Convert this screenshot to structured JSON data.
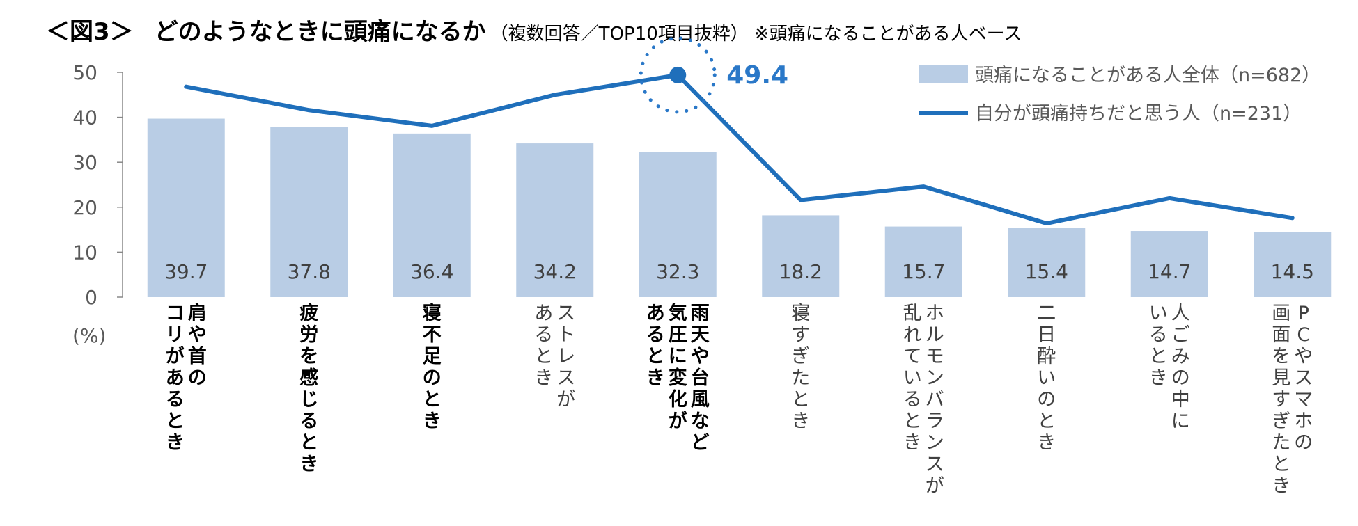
{
  "title": {
    "figure": "＜図3＞",
    "main": "どのようなときに頭痛になるか",
    "subtitle": "（複数回答／TOP10項目抜粋）",
    "note": "※頭痛になることがある人ベース"
  },
  "colors": {
    "bar": "#b9cde5",
    "line": "#1f6fbb",
    "peak": "#2a78c8"
  },
  "chart_data": {
    "type": "bar",
    "ylabel": "(%)",
    "ylim": [
      0,
      50
    ],
    "yticks": [
      0,
      10,
      20,
      30,
      40,
      50
    ],
    "categories": [
      {
        "lines": [
          "肩や首の",
          "コリがあるとき"
        ],
        "bold": true
      },
      {
        "lines": [
          "疲労を感じるとき"
        ],
        "bold": true
      },
      {
        "lines": [
          "寝不足のとき"
        ],
        "bold": true
      },
      {
        "lines": [
          "ストレスが",
          "あるとき"
        ],
        "bold": false
      },
      {
        "lines": [
          "雨天や台風など",
          "気圧に変化が",
          "あるとき"
        ],
        "bold": true
      },
      {
        "lines": [
          "寝すぎたとき"
        ],
        "bold": false
      },
      {
        "lines": [
          "ホルモンバランスが",
          "乱れているとき"
        ],
        "bold": false
      },
      {
        "lines": [
          "二日酔いのとき"
        ],
        "bold": false
      },
      {
        "lines": [
          "人ごみの中に",
          "いるとき"
        ],
        "bold": false
      },
      {
        "lines": [
          "PCやスマホの",
          "画面を見すぎたとき"
        ],
        "bold": false
      }
    ],
    "series": [
      {
        "name": "頭痛になることがある人全体（n=682）",
        "kind": "bar",
        "values": [
          39.7,
          37.8,
          36.4,
          34.2,
          32.3,
          18.2,
          15.7,
          15.4,
          14.7,
          14.5
        ],
        "labels": [
          "39.7",
          "37.8",
          "36.4",
          "34.2",
          "32.3",
          "18.2",
          "15.7",
          "15.4",
          "14.7",
          "14.5"
        ]
      },
      {
        "name": "自分が頭痛持ちだと思う人（n=231）",
        "kind": "line",
        "values": [
          46.8,
          41.6,
          38.1,
          45.0,
          49.4,
          21.6,
          24.6,
          16.4,
          22.0,
          17.6
        ]
      }
    ],
    "highlight": {
      "index": 4,
      "label": "49.4"
    }
  }
}
